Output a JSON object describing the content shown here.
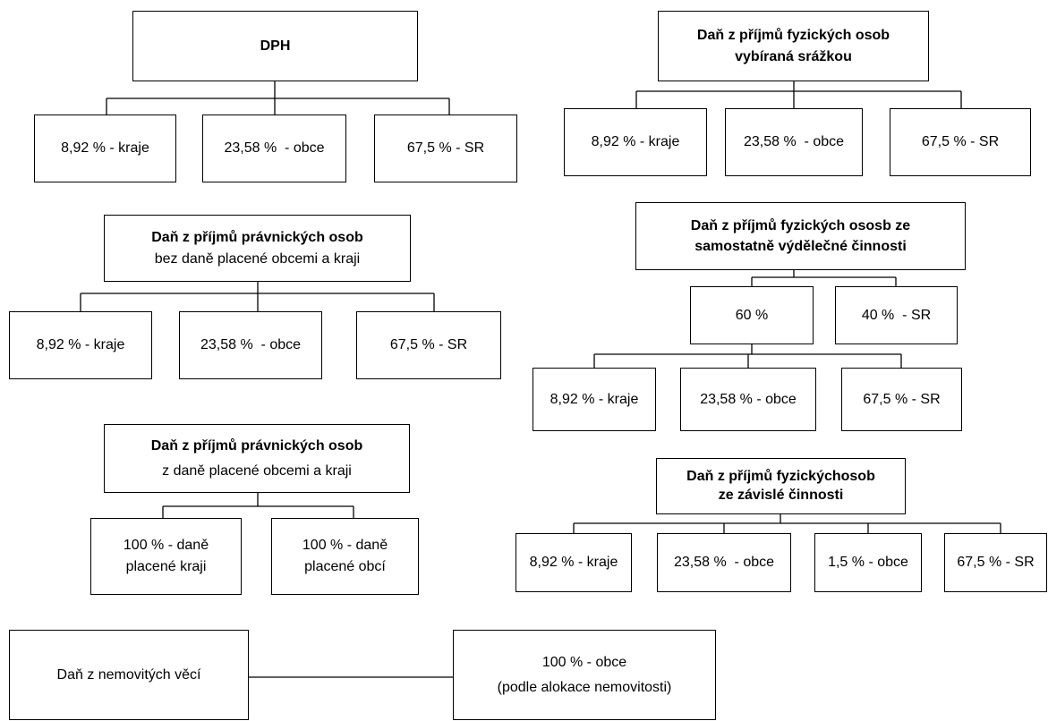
{
  "trees": [
    {
      "title": [
        "DPH"
      ],
      "children": [
        "8,92 % - kraje",
        "23,58 %  - obce",
        "67,5 % - SR"
      ]
    },
    {
      "title": [
        "Daň z příjmů fyzických osob",
        "vybíraná srážkou"
      ],
      "children": [
        "8,92 % - kraje",
        "23,58 %  - obce",
        "67,5 % - SR"
      ]
    },
    {
      "title": [
        "Daň z příjmů právnických osob",
        "bez daně placené obcemi a kraji"
      ],
      "children": [
        "8,92 % - kraje",
        "23,58 %  - obce",
        "67,5 % - SR"
      ]
    },
    {
      "title": [
        "Daň z příjmů fyzických ososb ze",
        "samostatně výdělečné činnosti"
      ],
      "children": [
        "60 %",
        "40 %  - SR"
      ],
      "subchildren": [
        "8,92 % - kraje",
        "23,58 % - obce",
        "67,5 % - SR"
      ]
    },
    {
      "title": [
        "Daň z příjmů fyzickýchosob",
        "ze závislé činnosti"
      ],
      "children": [
        "8,92 % - kraje",
        "23,58 %  - obce",
        "1,5 % - obce",
        "67,5 % - SR"
      ]
    },
    {
      "title": [
        "Daň z příjmů právnických osob",
        "z daně placené obcemi a kraji"
      ],
      "children": [
        [
          "100 % - daně",
          "placené kraji"
        ],
        [
          "100 % - daně",
          "placené obcí"
        ]
      ]
    },
    {
      "title": [
        "Daň z nemovitých věcí"
      ],
      "children": [
        [
          "100 % - obce",
          "(podle alokace nemovitosti)"
        ]
      ]
    }
  ]
}
